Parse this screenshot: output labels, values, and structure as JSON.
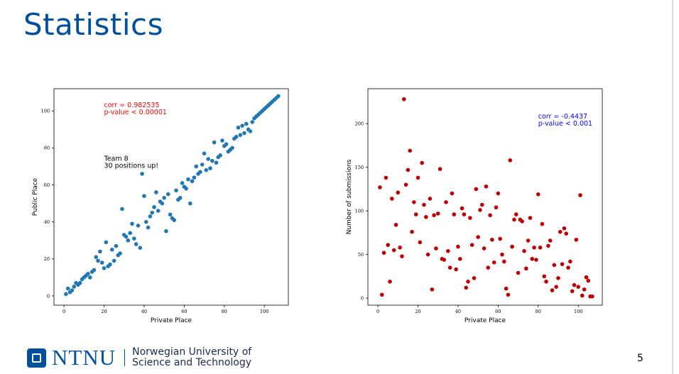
{
  "slide": {
    "title": "Statistics",
    "page_number": "5",
    "logo_text": "NTNU",
    "university_line1": "Norwegian University of",
    "university_line2": "Science and Technology",
    "accent": "#00509e"
  },
  "chart_data": [
    {
      "type": "scatter",
      "xlabel": "Private Place",
      "ylabel": "Public Place",
      "xlim": [
        -5,
        112
      ],
      "ylim": [
        -5,
        112
      ],
      "xticks": [
        0,
        20,
        40,
        60,
        80,
        100
      ],
      "yticks": [
        0,
        20,
        40,
        60,
        80,
        100
      ],
      "grid": false,
      "color": "#1f77b4",
      "annotations": [
        {
          "lines": [
            "corr = 0.982535",
            "p-value < 0.00001"
          ],
          "x": 20,
          "y": 102,
          "color": "#ff0000"
        },
        {
          "lines": [
            "Team 8",
            "30 positions up!"
          ],
          "x": 20,
          "y": 73,
          "color": "#000000"
        }
      ],
      "points": [
        [
          1,
          1
        ],
        [
          2,
          4
        ],
        [
          3,
          2
        ],
        [
          4,
          3
        ],
        [
          5,
          5
        ],
        [
          6,
          7
        ],
        [
          7,
          6
        ],
        [
          8,
          7
        ],
        [
          9,
          9
        ],
        [
          10,
          10
        ],
        [
          11,
          11
        ],
        [
          12,
          12
        ],
        [
          13,
          10
        ],
        [
          14,
          13
        ],
        [
          15,
          14
        ],
        [
          16,
          21
        ],
        [
          17,
          19
        ],
        [
          18,
          24
        ],
        [
          19,
          18
        ],
        [
          20,
          15
        ],
        [
          21,
          29
        ],
        [
          22,
          16
        ],
        [
          23,
          17
        ],
        [
          24,
          25
        ],
        [
          25,
          19
        ],
        [
          26,
          27
        ],
        [
          27,
          22
        ],
        [
          28,
          23
        ],
        [
          29,
          47
        ],
        [
          30,
          33
        ],
        [
          31,
          32
        ],
        [
          32,
          30
        ],
        [
          33,
          34
        ],
        [
          34,
          39
        ],
        [
          35,
          31
        ],
        [
          36,
          28
        ],
        [
          37,
          38
        ],
        [
          38,
          26
        ],
        [
          39,
          66
        ],
        [
          40,
          54
        ],
        [
          41,
          40
        ],
        [
          42,
          37
        ],
        [
          43,
          43
        ],
        [
          44,
          45
        ],
        [
          45,
          48
        ],
        [
          46,
          56
        ],
        [
          47,
          46
        ],
        [
          48,
          51
        ],
        [
          49,
          50
        ],
        [
          50,
          53
        ],
        [
          51,
          35
        ],
        [
          52,
          55
        ],
        [
          53,
          44
        ],
        [
          54,
          42
        ],
        [
          55,
          41
        ],
        [
          56,
          57
        ],
        [
          57,
          52
        ],
        [
          58,
          53
        ],
        [
          59,
          61
        ],
        [
          60,
          59
        ],
        [
          61,
          58
        ],
        [
          62,
          63
        ],
        [
          63,
          50
        ],
        [
          64,
          62
        ],
        [
          65,
          64
        ],
        [
          66,
          70
        ],
        [
          67,
          66
        ],
        [
          68,
          67
        ],
        [
          69,
          71
        ],
        [
          70,
          77
        ],
        [
          71,
          68
        ],
        [
          72,
          74
        ],
        [
          73,
          69
        ],
        [
          74,
          73
        ],
        [
          75,
          83
        ],
        [
          76,
          72
        ],
        [
          77,
          75
        ],
        [
          78,
          76
        ],
        [
          79,
          84
        ],
        [
          80,
          81
        ],
        [
          81,
          82
        ],
        [
          82,
          78
        ],
        [
          83,
          79
        ],
        [
          84,
          80
        ],
        [
          85,
          85
        ],
        [
          86,
          86
        ],
        [
          87,
          91
        ],
        [
          88,
          87
        ],
        [
          89,
          92
        ],
        [
          90,
          88
        ],
        [
          91,
          93
        ],
        [
          92,
          90
        ],
        [
          93,
          89
        ],
        [
          94,
          94
        ],
        [
          95,
          96
        ],
        [
          96,
          97
        ],
        [
          97,
          98
        ],
        [
          98,
          99
        ],
        [
          99,
          100
        ],
        [
          100,
          101
        ],
        [
          101,
          102
        ],
        [
          102,
          103
        ],
        [
          103,
          104
        ],
        [
          104,
          105
        ],
        [
          105,
          106
        ],
        [
          106,
          107
        ],
        [
          107,
          108
        ]
      ]
    },
    {
      "type": "scatter",
      "xlabel": "Private Place",
      "ylabel": "Number of submissions",
      "xlim": [
        -5,
        112
      ],
      "ylim": [
        -8,
        240
      ],
      "xticks": [
        0,
        20,
        40,
        60,
        80,
        100
      ],
      "yticks": [
        0,
        50,
        100,
        150,
        200
      ],
      "grid": false,
      "color": "#c00000",
      "annotations": [
        {
          "lines": [
            "corr = -0.4437",
            "p-value < 0.001"
          ],
          "x": 80,
          "y": 206,
          "color": "#0000ff"
        }
      ],
      "points": [
        [
          1,
          127
        ],
        [
          2,
          4
        ],
        [
          3,
          52
        ],
        [
          4,
          138
        ],
        [
          5,
          61
        ],
        [
          6,
          19
        ],
        [
          7,
          114
        ],
        [
          8,
          55
        ],
        [
          9,
          84
        ],
        [
          10,
          121
        ],
        [
          11,
          58
        ],
        [
          12,
          48
        ],
        [
          13,
          228
        ],
        [
          14,
          130
        ],
        [
          15,
          147
        ],
        [
          16,
          169
        ],
        [
          17,
          76
        ],
        [
          18,
          110
        ],
        [
          19,
          96
        ],
        [
          20,
          138
        ],
        [
          21,
          64
        ],
        [
          22,
          155
        ],
        [
          23,
          107
        ],
        [
          24,
          93
        ],
        [
          25,
          50
        ],
        [
          26,
          114
        ],
        [
          27,
          10
        ],
        [
          28,
          95
        ],
        [
          29,
          57
        ],
        [
          30,
          97
        ],
        [
          31,
          148
        ],
        [
          32,
          45
        ],
        [
          33,
          44
        ],
        [
          34,
          110
        ],
        [
          35,
          54
        ],
        [
          36,
          35
        ],
        [
          37,
          120
        ],
        [
          38,
          96
        ],
        [
          39,
          33
        ],
        [
          40,
          59
        ],
        [
          41,
          45
        ],
        [
          42,
          103
        ],
        [
          43,
          96
        ],
        [
          44,
          12
        ],
        [
          45,
          19
        ],
        [
          46,
          92
        ],
        [
          47,
          61
        ],
        [
          48,
          23
        ],
        [
          49,
          125
        ],
        [
          50,
          70
        ],
        [
          51,
          101
        ],
        [
          52,
          107
        ],
        [
          53,
          57
        ],
        [
          54,
          128
        ],
        [
          55,
          35
        ],
        [
          56,
          95
        ],
        [
          57,
          67
        ],
        [
          58,
          41
        ],
        [
          59,
          104
        ],
        [
          60,
          120
        ],
        [
          61,
          68
        ],
        [
          62,
          50
        ],
        [
          63,
          42
        ],
        [
          64,
          11
        ],
        [
          65,
          4
        ],
        [
          66,
          158
        ],
        [
          67,
          59
        ],
        [
          68,
          90
        ],
        [
          69,
          96
        ],
        [
          70,
          29
        ],
        [
          71,
          90
        ],
        [
          72,
          88
        ],
        [
          73,
          54
        ],
        [
          74,
          34
        ],
        [
          75,
          66
        ],
        [
          76,
          92
        ],
        [
          77,
          45
        ],
        [
          78,
          58
        ],
        [
          79,
          44
        ],
        [
          80,
          119
        ],
        [
          81,
          58
        ],
        [
          82,
          85
        ],
        [
          83,
          25
        ],
        [
          84,
          19
        ],
        [
          85,
          60
        ],
        [
          86,
          66
        ],
        [
          87,
          9
        ],
        [
          88,
          38
        ],
        [
          89,
          13
        ],
        [
          90,
          23
        ],
        [
          91,
          76
        ],
        [
          92,
          39
        ],
        [
          93,
          80
        ],
        [
          94,
          74
        ],
        [
          95,
          35
        ],
        [
          96,
          42
        ],
        [
          97,
          8
        ],
        [
          98,
          15
        ],
        [
          99,
          67
        ],
        [
          100,
          13
        ],
        [
          101,
          118
        ],
        [
          102,
          3
        ],
        [
          103,
          10
        ],
        [
          104,
          24
        ],
        [
          105,
          20
        ],
        [
          106,
          2
        ],
        [
          107,
          2
        ]
      ]
    }
  ]
}
